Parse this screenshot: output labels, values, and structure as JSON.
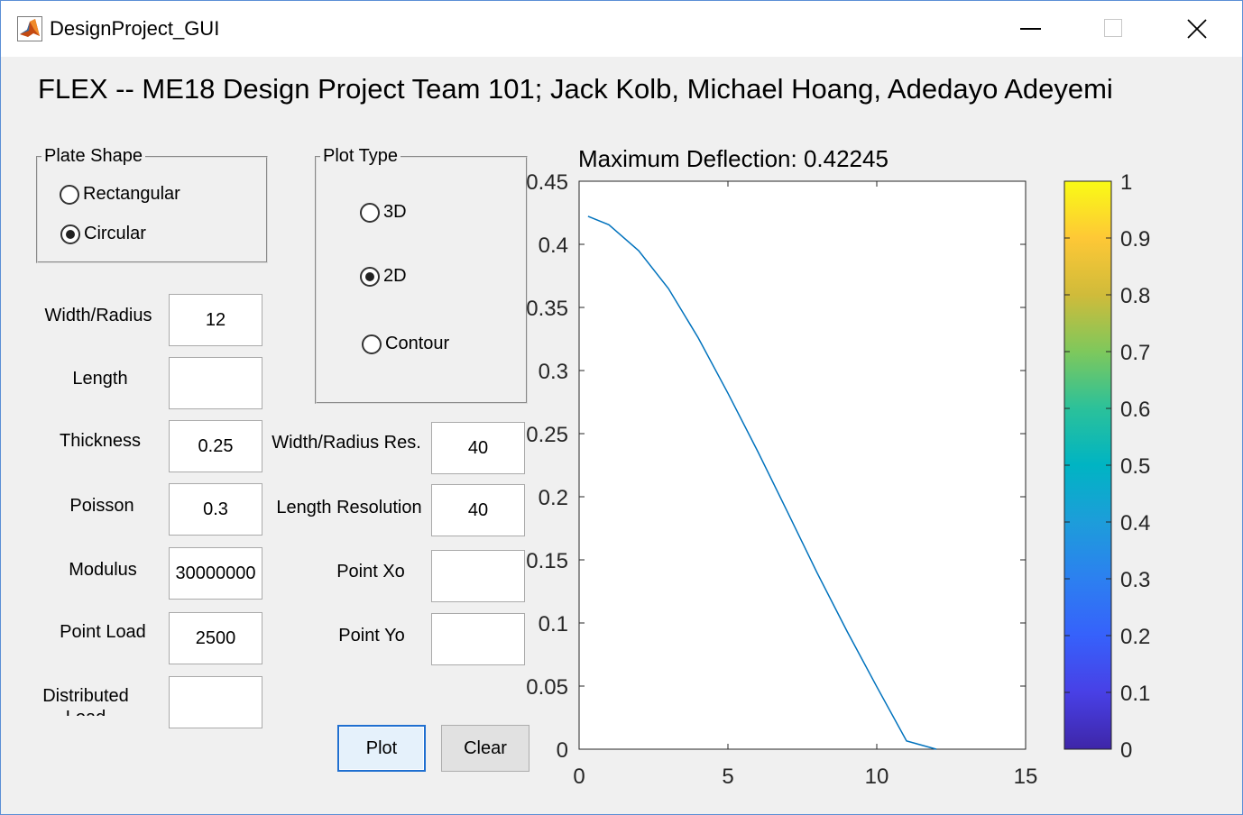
{
  "window": {
    "title": "DesignProject_GUI"
  },
  "heading": "FLEX -- ME18 Design Project Team 101; Jack Kolb, Michael Hoang, Adedayo Adeyemi",
  "plate_shape": {
    "legend": "Plate Shape",
    "options": [
      {
        "label": "Rectangular",
        "selected": false
      },
      {
        "label": "Circular",
        "selected": true
      }
    ]
  },
  "plot_type": {
    "legend": "Plot Type",
    "options": [
      {
        "label": "3D",
        "selected": false
      },
      {
        "label": "2D",
        "selected": true
      },
      {
        "label": "Contour",
        "selected": false
      }
    ]
  },
  "inputs": {
    "width_radius": {
      "label": "Width/Radius",
      "value": "12"
    },
    "length": {
      "label": "Length",
      "value": ""
    },
    "thickness": {
      "label": "Thickness",
      "value": "0.25"
    },
    "poisson": {
      "label": "Poisson",
      "value": "0.3"
    },
    "modulus": {
      "label": "Modulus",
      "value": "30000000"
    },
    "point_load": {
      "label": "Point Load",
      "value": "2500"
    },
    "distributed_load": {
      "label": "Distributed Load",
      "value": ""
    },
    "width_radius_res": {
      "label": "Width/Radius Res.",
      "value": "40"
    },
    "length_resolution": {
      "label": "Length Resolution",
      "value": "40"
    },
    "point_xo": {
      "label": "Point Xo",
      "value": ""
    },
    "point_yo": {
      "label": "Point Yo",
      "value": ""
    }
  },
  "buttons": {
    "plot": "Plot",
    "clear": "Clear"
  },
  "chart_data": {
    "type": "line",
    "title": "Maximum Deflection: 0.42245",
    "xlabel": "",
    "ylabel": "",
    "xlim": [
      0,
      15
    ],
    "ylim": [
      0,
      0.45
    ],
    "x_ticks": [
      0,
      5,
      10,
      15
    ],
    "y_ticks": [
      0,
      0.05,
      0.1,
      0.15,
      0.2,
      0.25,
      0.3,
      0.35,
      0.4,
      0.45
    ],
    "grid": false,
    "line_color": "#0072bd",
    "series": [
      {
        "x": [
          0.3,
          1,
          2,
          3,
          4,
          5,
          6,
          7,
          8,
          9,
          10,
          11,
          12
        ],
        "y": [
          0.4222,
          0.4155,
          0.395,
          0.365,
          0.326,
          0.282,
          0.236,
          0.188,
          0.1395,
          0.0935,
          0.0495,
          0.0065,
          0
        ]
      }
    ],
    "colorbar": {
      "ticks": [
        "0",
        "0.1",
        "0.2",
        "0.3",
        "0.4",
        "0.5",
        "0.6",
        "0.7",
        "0.8",
        "0.9",
        "1"
      ],
      "range": [
        0,
        1
      ],
      "colormap": "parula"
    }
  }
}
